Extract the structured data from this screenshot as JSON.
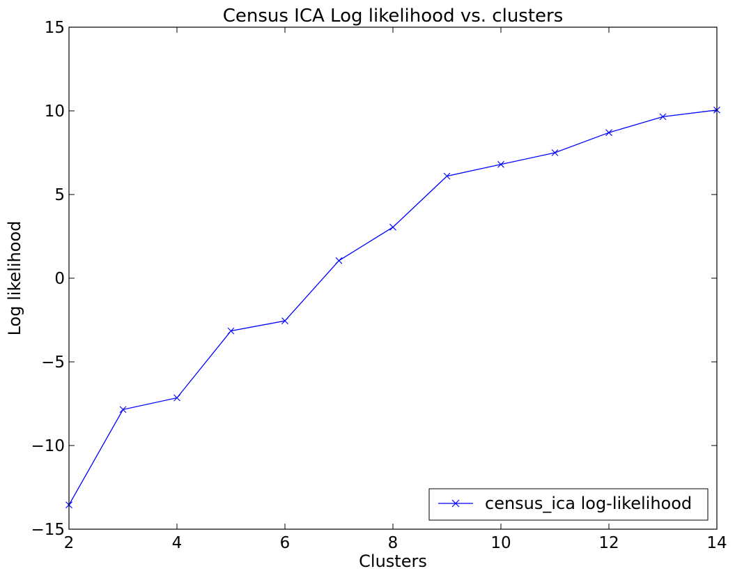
{
  "chart_data": {
    "type": "line",
    "title": "Census ICA Log likelihood vs. clusters",
    "xlabel": "Clusters",
    "ylabel": "Log likelihood",
    "xlim": [
      2,
      14
    ],
    "ylim": [
      -15,
      15
    ],
    "xticks": [
      "2",
      "4",
      "6",
      "8",
      "10",
      "12",
      "14"
    ],
    "yticks": [
      "−15",
      "−10",
      "−5",
      "0",
      "5",
      "10",
      "15"
    ],
    "grid": false,
    "legend_position": "lower-right",
    "series": [
      {
        "name": "census_ica log-likelihood",
        "color": "#0000ff",
        "marker": "x",
        "x": [
          2,
          3,
          4,
          5,
          6,
          7,
          8,
          9,
          10,
          11,
          12,
          13,
          14
        ],
        "y": [
          -13.55,
          -7.85,
          -7.15,
          -3.15,
          -2.55,
          1.05,
          3.05,
          6.1,
          6.8,
          7.5,
          8.7,
          9.65,
          10.05
        ]
      }
    ]
  }
}
